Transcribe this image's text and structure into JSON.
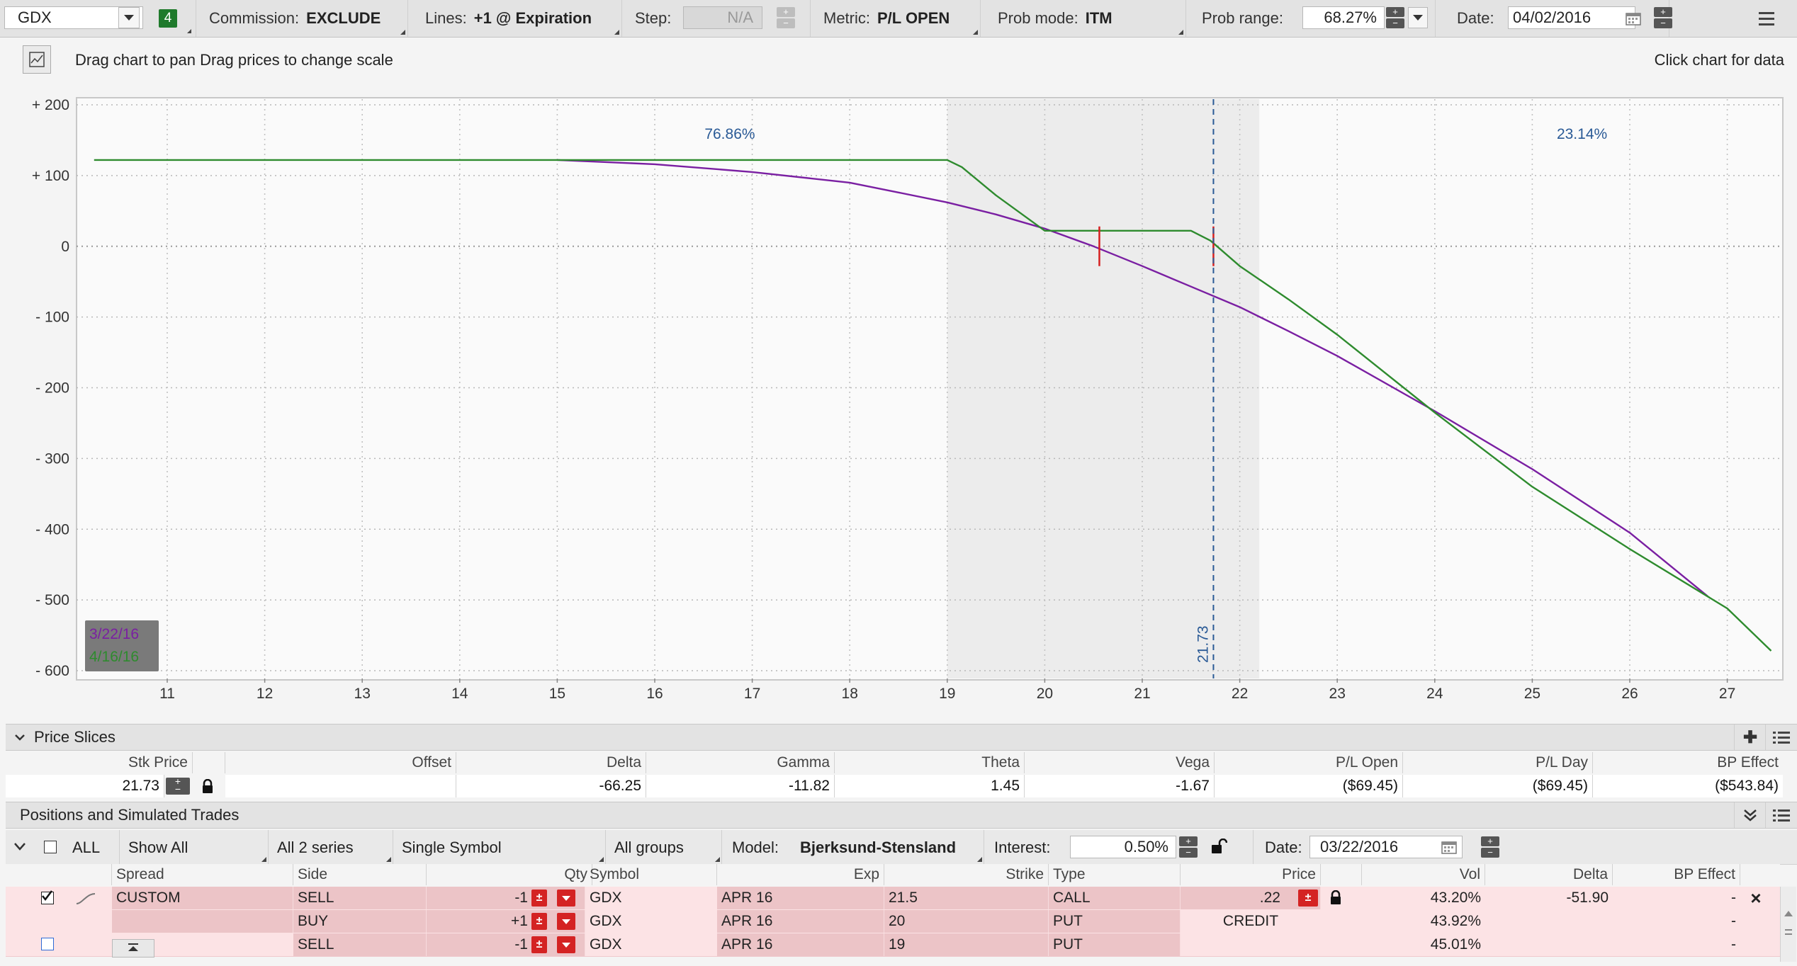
{
  "toolbar": {
    "symbol": "GDX",
    "badge": "4",
    "commission_label": "Commission:",
    "commission_value": "EXCLUDE",
    "lines_label": "Lines:",
    "lines_value": "+1 @ Expiration",
    "step_label": "Step:",
    "step_value": "N/A",
    "metric_label": "Metric:",
    "metric_value": "P/L OPEN",
    "prob_mode_label": "Prob mode:",
    "prob_mode_value": "ITM",
    "prob_range_label": "Prob range:",
    "prob_range_value": "68.27%",
    "date_label": "Date:",
    "date_value": "04/02/2016"
  },
  "chart_header": {
    "hint": "Drag chart to pan Drag prices to change scale",
    "click_hint": "Click chart for data"
  },
  "chart_data": {
    "type": "line",
    "xlabel": "",
    "ylabel": "",
    "x_ticks": [
      "11",
      "12",
      "13",
      "14",
      "15",
      "16",
      "17",
      "18",
      "19",
      "20",
      "21",
      "22",
      "23",
      "24",
      "25",
      "26",
      "27"
    ],
    "y_ticks": [
      "+ 200",
      "+ 100",
      "0",
      "- 100",
      "- 200",
      "- 300",
      "- 400",
      "- 500",
      "- 600"
    ],
    "xlim": [
      10.25,
      27.65
    ],
    "ylim": [
      -610,
      205
    ],
    "grid": true,
    "probability_band": [
      19.0,
      22.2
    ],
    "prob_left_label": "76.86%",
    "prob_right_label": "23.14%",
    "current_price": 21.73,
    "current_price_label": "21.73",
    "series": [
      {
        "name": "3/22/16",
        "color": "#7a1fa2",
        "x": [
          15.0,
          16.0,
          17.0,
          18.0,
          18.5,
          19.0,
          19.5,
          20.0,
          20.5,
          21.0,
          21.5,
          22.0,
          22.5,
          23.0,
          24.0,
          25.0,
          26.0,
          26.8
        ],
        "y": [
          122,
          116,
          105,
          90,
          76,
          62,
          45,
          25,
          0,
          -28,
          -57,
          -86,
          -120,
          -155,
          -233,
          -315,
          -405,
          -495
        ]
      },
      {
        "name": "4/16/16",
        "color": "#2e8b2e",
        "x": [
          10.25,
          15.0,
          19.0,
          19.15,
          19.5,
          20.0,
          21.0,
          21.5,
          21.7,
          22.0,
          22.5,
          23.0,
          24.0,
          25.0,
          26.0,
          27.0,
          27.45
        ],
        "y": [
          122,
          122,
          122,
          112,
          72,
          22,
          22,
          22,
          8,
          -28,
          -75,
          -125,
          -235,
          -340,
          -428,
          -512,
          -572
        ]
      }
    ],
    "markers": [
      {
        "x": 20.56,
        "y": 0,
        "color": "#d62020"
      },
      {
        "x": 21.73,
        "y": 0,
        "color": "#d62020"
      }
    ],
    "legend": {
      "placement": "bottom-left",
      "entries": [
        "3/22/16",
        "4/16/16"
      ]
    }
  },
  "price_slices": {
    "title": "Price Slices",
    "headers": {
      "stk_price": "Stk Price",
      "offset": "Offset",
      "delta": "Delta",
      "gamma": "Gamma",
      "theta": "Theta",
      "vega": "Vega",
      "pl_open": "P/L Open",
      "pl_day": "P/L Day",
      "bp_effect": "BP Effect"
    },
    "row": {
      "stk_price": "21.73",
      "offset": "",
      "delta": "-66.25",
      "gamma": "-11.82",
      "theta": "1.45",
      "vega": "-1.67",
      "pl_open": "($69.45)",
      "pl_day": "($69.45)",
      "bp_effect": "($543.84)"
    }
  },
  "positions": {
    "title": "Positions and Simulated Trades",
    "filters": {
      "all": "ALL",
      "show": "Show All",
      "series": "All 2 series",
      "symbol_mode": "Single Symbol",
      "groups": "All groups",
      "model_label": "Model:",
      "model_value": "Bjerksund-Stensland",
      "interest_label": "Interest:",
      "interest_value": "0.50%",
      "date_label": "Date:",
      "date_value": "03/22/2016"
    },
    "headers": {
      "spread": "Spread",
      "side": "Side",
      "qty": "Qty",
      "symbol": "Symbol",
      "exp": "Exp",
      "strike": "Strike",
      "type": "Type",
      "price": "Price",
      "vol": "Vol",
      "delta": "Delta",
      "bp_effect": "BP Effect"
    },
    "rows": [
      {
        "spread": "CUSTOM",
        "side": "SELL",
        "qty": "-1",
        "symbol": "GDX",
        "exp": "APR 16",
        "strike": "21.5",
        "type": "CALL",
        "price": ".22",
        "vol": "43.20%",
        "delta": "-51.90",
        "bp_effect": "-"
      },
      {
        "spread": "",
        "side": "BUY",
        "qty": "+1",
        "symbol": "GDX",
        "exp": "APR 16",
        "strike": "20",
        "type": "PUT",
        "price": "CREDIT",
        "vol": "43.92%",
        "delta": "",
        "bp_effect": "-"
      },
      {
        "spread": "",
        "side": "SELL",
        "qty": "-1",
        "symbol": "GDX",
        "exp": "APR 16",
        "strike": "19",
        "type": "PUT",
        "price": "",
        "vol": "45.01%",
        "delta": "",
        "bp_effect": "-"
      }
    ]
  }
}
